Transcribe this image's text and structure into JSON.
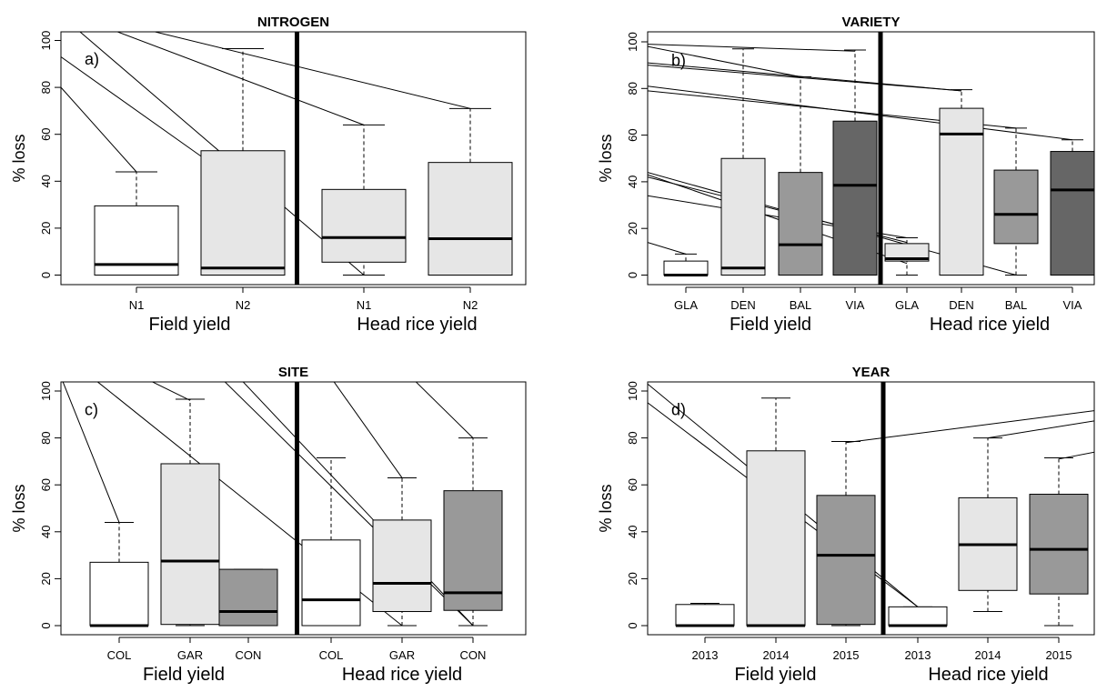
{
  "chart_data": [
    {
      "type": "boxplot",
      "title": "NITROGEN",
      "tag": "a)",
      "ylabel": "% loss",
      "ylim": [
        0,
        100
      ],
      "yticks": [
        0,
        20,
        40,
        60,
        80,
        100
      ],
      "groups": [
        "Field yield",
        "Head rice yield"
      ],
      "categories": [
        "N1",
        "N2",
        "N1",
        "N2"
      ],
      "fills": [
        "#ffffff",
        "#e6e6e6",
        "#e6e6e6",
        "#e6e6e6"
      ],
      "boxes": [
        {
          "min": 0,
          "q1": 0,
          "median": 4.5,
          "q3": 29.5,
          "max": 44
        },
        {
          "min": 0,
          "q1": 0,
          "median": 3,
          "q3": 53,
          "max": 96.5
        },
        {
          "min": 0,
          "q1": 5.5,
          "median": 16,
          "q3": 36.5,
          "max": 64
        },
        {
          "min": 0,
          "q1": 0,
          "median": 15.5,
          "q3": 48,
          "max": 71
        }
      ]
    },
    {
      "type": "boxplot",
      "title": "VARIETY",
      "tag": "b)",
      "ylabel": "% loss",
      "ylim": [
        0,
        100
      ],
      "yticks": [
        0,
        20,
        40,
        60,
        80,
        100
      ],
      "groups": [
        "Field yield",
        "Head rice yield"
      ],
      "categories": [
        "GLA",
        "DEN",
        "BAL",
        "VIA",
        "GLA",
        "DEN",
        "BAL",
        "VIA"
      ],
      "fills": [
        "#ffffff",
        "#e6e6e6",
        "#999999",
        "#666666",
        "#e6e6e6",
        "#e6e6e6",
        "#999999",
        "#666666"
      ],
      "boxes": [
        {
          "min": 0,
          "q1": 0,
          "median": 0,
          "q3": 6,
          "max": 9
        },
        {
          "min": 0,
          "q1": 0,
          "median": 3,
          "q3": 50,
          "max": 97
        },
        {
          "min": 0,
          "q1": 0,
          "median": 13,
          "q3": 44,
          "max": 85
        },
        {
          "min": 0,
          "q1": 0,
          "median": 38.5,
          "q3": 66,
          "max": 96.5
        },
        {
          "min": 0,
          "q1": 6,
          "median": 7,
          "q3": 13.5,
          "max": 16
        },
        {
          "min": 0,
          "q1": 0,
          "median": 60.5,
          "q3": 71.5,
          "max": 79.5
        },
        {
          "min": 0,
          "q1": 13.5,
          "median": 26,
          "q3": 45,
          "max": 63
        },
        {
          "min": 0,
          "q1": 0,
          "median": 36.5,
          "q3": 53,
          "max": 58
        }
      ]
    },
    {
      "type": "boxplot",
      "title": "SITE",
      "tag": "c)",
      "ylabel": "% loss",
      "ylim": [
        0,
        100
      ],
      "yticks": [
        0,
        20,
        40,
        60,
        80,
        100
      ],
      "groups": [
        "Field yield",
        "Head rice yield"
      ],
      "categories": [
        "COL",
        "GAR",
        "CON",
        "COL",
        "GAR",
        "CON"
      ],
      "fills": [
        "#ffffff",
        "#e6e6e6",
        "#999999",
        "#ffffff",
        "#e6e6e6",
        "#999999"
      ],
      "boxes": [
        {
          "min": 0,
          "q1": 0,
          "median": 0,
          "q3": 27,
          "max": 44
        },
        {
          "min": 0,
          "q1": 0.5,
          "median": 27.5,
          "q3": 69,
          "max": 96.5
        },
        {
          "min": 0,
          "q1": 0,
          "median": 6,
          "q3": 24,
          "max": 24
        },
        {
          "min": 0,
          "q1": 0,
          "median": 11,
          "q3": 36.5,
          "max": 71.5
        },
        {
          "min": 0,
          "q1": 6,
          "median": 18,
          "q3": 45,
          "max": 63
        },
        {
          "min": 0,
          "q1": 6.5,
          "median": 14,
          "q3": 57.5,
          "max": 80
        }
      ]
    },
    {
      "type": "boxplot",
      "title": "YEAR",
      "tag": "d)",
      "ylabel": "% loss",
      "ylim": [
        0,
        100
      ],
      "yticks": [
        0,
        20,
        40,
        60,
        80,
        100
      ],
      "groups": [
        "Field yield",
        "Head rice yield"
      ],
      "categories": [
        "2013",
        "2014",
        "2015",
        "2013",
        "2014",
        "2015"
      ],
      "fills": [
        "#ffffff",
        "#e6e6e6",
        "#999999",
        "#ffffff",
        "#e6e6e6",
        "#999999"
      ],
      "boxes": [
        {
          "min": 0,
          "q1": 0,
          "median": 0,
          "q3": 9,
          "max": 9.5
        },
        {
          "min": 0,
          "q1": 0,
          "median": 0,
          "q3": 74.5,
          "max": 97
        },
        {
          "min": 0,
          "q1": 0.5,
          "median": 30,
          "q3": 55.5,
          "max": 78.5
        },
        {
          "min": 0,
          "q1": 0,
          "median": 0,
          "q3": 8,
          "max": 8
        },
        {
          "min": 6,
          "q1": 15,
          "median": 34.5,
          "q3": 54.5,
          "max": 80
        },
        {
          "min": 0,
          "q1": 13.5,
          "median": 32.5,
          "q3": 56,
          "max": 71.5
        }
      ]
    }
  ]
}
